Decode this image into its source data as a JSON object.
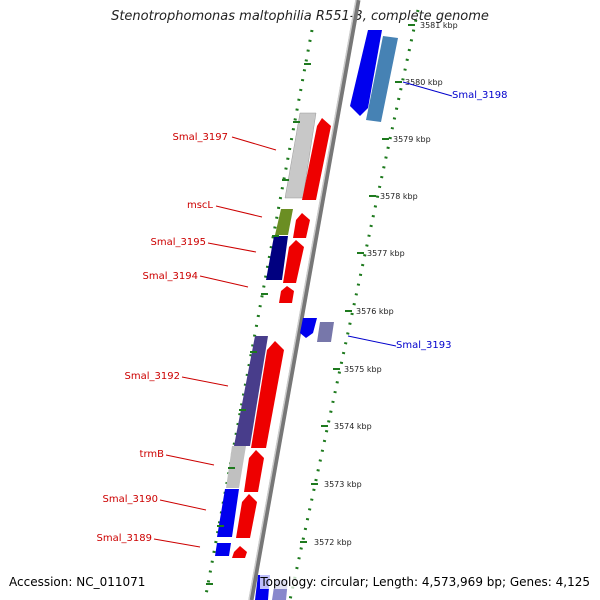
{
  "title": "Stenotrophomonas maltophilia R551-3, complete genome",
  "accession": "Accession: NC_011071",
  "topology": "Topology: circular; Length: 4,573,969 bp; Genes: 4,125",
  "colors": {
    "forward_cds": "#ee0000",
    "reverse_labels": "#cc0000",
    "forward_labels": "#0000cc",
    "tick": "#1e7a1e",
    "backbone": "#888888"
  },
  "kbp_ticks": [
    {
      "label": "3581 kbp"
    },
    {
      "label": "3580 kbp"
    },
    {
      "label": "3579 kbp"
    },
    {
      "label": "3578 kbp"
    },
    {
      "label": "3577 kbp"
    },
    {
      "label": "3576 kbp"
    },
    {
      "label": "3575 kbp"
    },
    {
      "label": "3574 kbp"
    },
    {
      "label": "3573 kbp"
    },
    {
      "label": "3572 kbp"
    }
  ],
  "gene_labels": [
    {
      "text": "Smal_3198",
      "strand": "forward"
    },
    {
      "text": "Smal_3197",
      "strand": "reverse"
    },
    {
      "text": "mscL",
      "strand": "reverse"
    },
    {
      "text": "Smal_3195",
      "strand": "reverse"
    },
    {
      "text": "Smal_3194",
      "strand": "reverse"
    },
    {
      "text": "Smal_3193",
      "strand": "forward"
    },
    {
      "text": "Smal_3192",
      "strand": "reverse"
    },
    {
      "text": "trmB",
      "strand": "reverse"
    },
    {
      "text": "Smal_3190",
      "strand": "reverse"
    },
    {
      "text": "Smal_3189",
      "strand": "reverse"
    }
  ]
}
